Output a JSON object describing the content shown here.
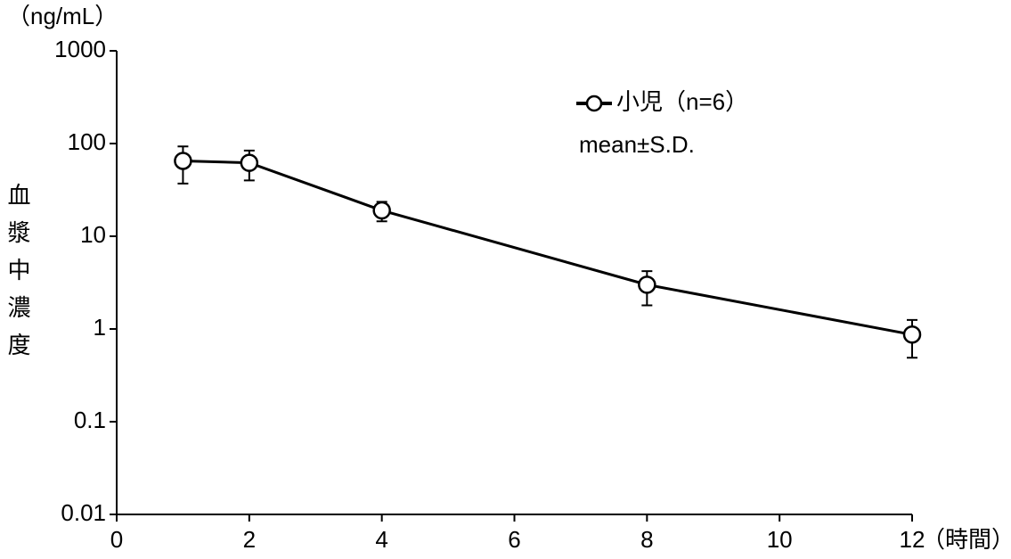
{
  "chart_data": {
    "type": "line",
    "y_unit": "（ng/mL）",
    "y_label": "血漿中濃度",
    "x_unit": "（時間）",
    "annotation": "mean±S.D.",
    "x": [
      1,
      2,
      4,
      8,
      12
    ],
    "series": [
      {
        "name": "小児（n=6）",
        "color": "#000000",
        "values": [
          65,
          62,
          19,
          3.0,
          0.87
        ],
        "errors": [
          28,
          22,
          4.5,
          1.2,
          0.38
        ]
      }
    ],
    "xlim": [
      0,
      12
    ],
    "xticks": [
      0,
      2,
      4,
      6,
      8,
      10,
      12
    ],
    "ylim": [
      0.01,
      1000
    ],
    "yticks": [
      0.01,
      0.1,
      1,
      10,
      100,
      1000
    ],
    "log_y": true,
    "grid": false,
    "legend": "upper right"
  }
}
